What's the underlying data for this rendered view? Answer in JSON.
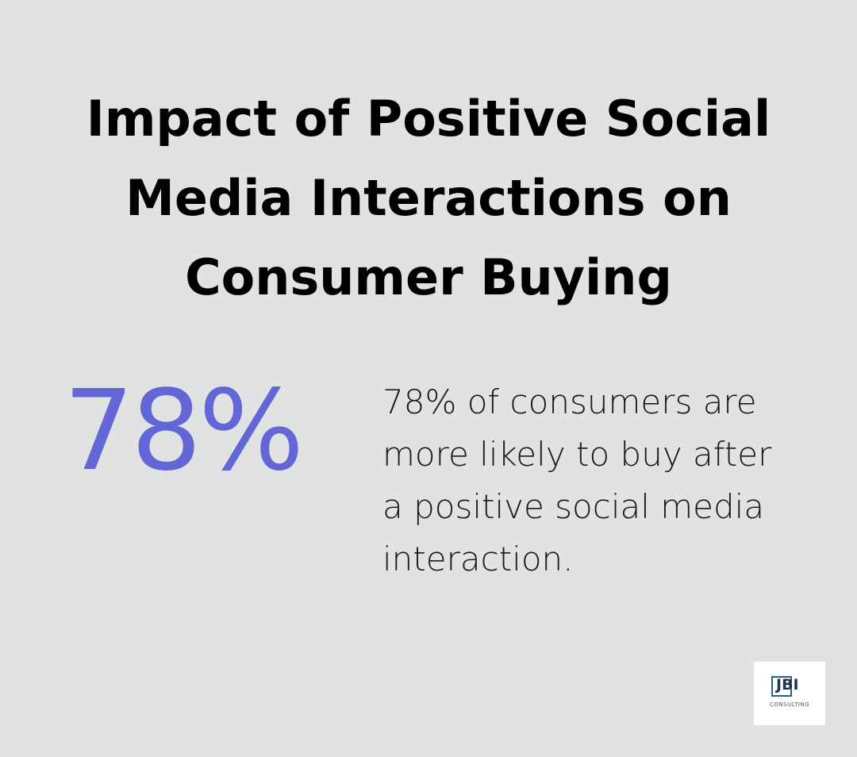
{
  "title": "Impact of Positive Social Media Interactions on Consumer Buying",
  "stat": {
    "value": "78%",
    "description": "78% of consumers are more likely to buy after a positive social media interaction."
  },
  "logo": {
    "main": "JBI",
    "sub": "CONSULTING"
  }
}
